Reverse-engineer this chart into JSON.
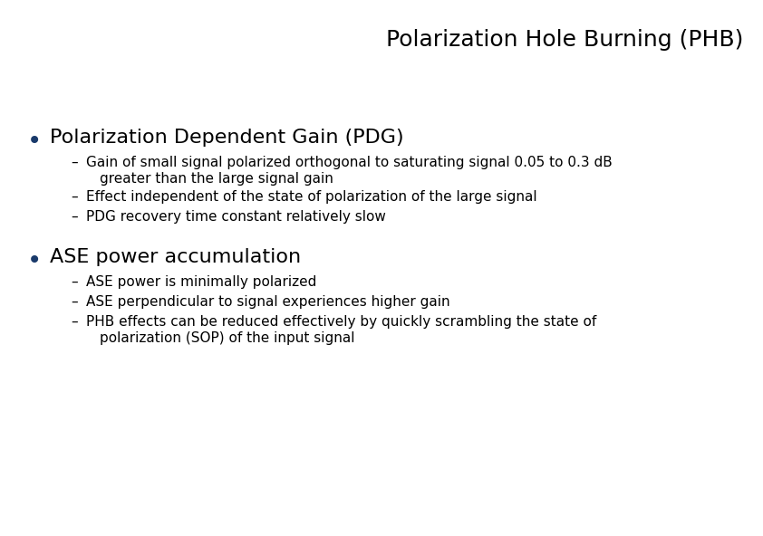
{
  "title": "Polarization Hole Burning (PHB)",
  "title_fontsize": 18,
  "background_color": "#ffffff",
  "bullet1_header": "Polarization Dependent Gain (PDG)",
  "bullet1_header_fontsize": 16,
  "bullet1_subitems_line1": [
    "Gain of small signal polarized orthogonal to saturating signal 0.05 to 0.3 dB",
    "Effect independent of the state of polarization of the large signal",
    "PDG recovery time constant relatively slow"
  ],
  "bullet1_subitems_line2": [
    "greater than the large signal gain",
    null,
    null
  ],
  "bullet2_header": "ASE power accumulation",
  "bullet2_header_fontsize": 16,
  "bullet2_subitems_line1": [
    "ASE power is minimally polarized",
    "ASE perpendicular to signal experiences higher gain",
    "PHB effects can be reduced effectively by quickly scrambling the state of"
  ],
  "bullet2_subitems_line2": [
    null,
    null,
    "polarization (SOP) of the input signal"
  ],
  "sub_fontsize": 11,
  "text_color": "#000000",
  "bullet_color": "#1a3a6b"
}
